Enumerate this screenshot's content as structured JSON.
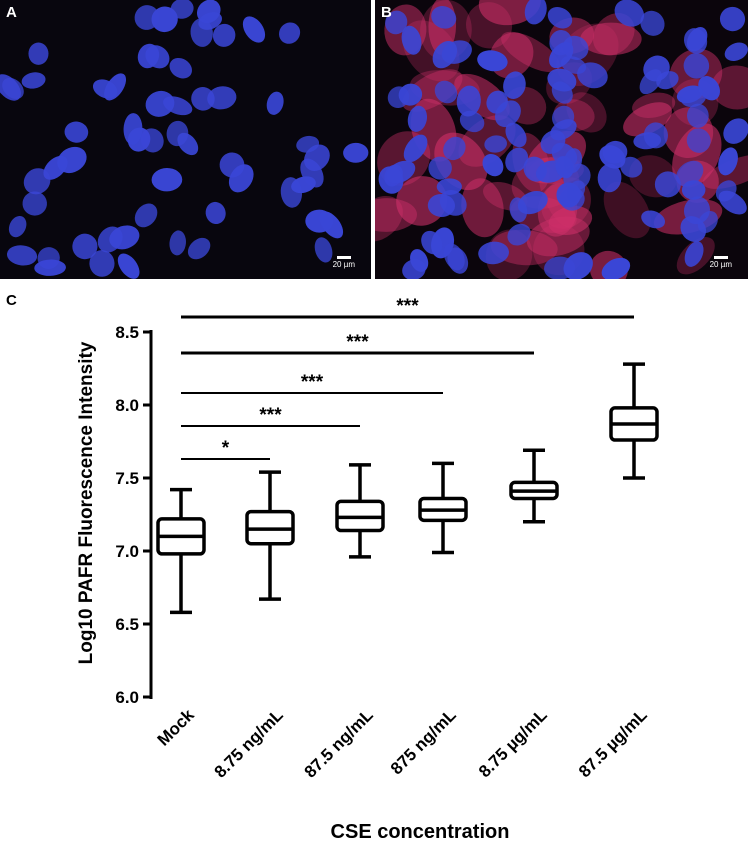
{
  "panels": {
    "a": {
      "letter": "A",
      "scale_label": "20 µm"
    },
    "b": {
      "letter": "B",
      "scale_label": "20 µm"
    },
    "c": {
      "letter": "C"
    }
  },
  "colors": {
    "nucleus": "#3a46d6",
    "pafr_stain": "#d0306a",
    "background_a": "#08060e",
    "background_b": "#0b050c",
    "ink": "#000000"
  },
  "chart_data": {
    "type": "box",
    "xlabel": "CSE concentration",
    "ylabel": "Log10 PAFR Fluorescence Intensity",
    "ylim": [
      6.0,
      8.5
    ],
    "yticks": [
      "6.0",
      "6.5",
      "7.0",
      "7.5",
      "8.0",
      "8.5"
    ],
    "categories": [
      "Mock",
      "8.75 ng/mL",
      "87.5 ng/mL",
      "875 ng/mL",
      "8.75 µg/mL",
      "87.5 µg/mL"
    ],
    "boxes": [
      {
        "min": 6.58,
        "q1": 6.98,
        "median": 7.1,
        "q3": 7.22,
        "max": 7.42
      },
      {
        "min": 6.67,
        "q1": 7.05,
        "median": 7.15,
        "q3": 7.27,
        "max": 7.54
      },
      {
        "min": 6.96,
        "q1": 7.14,
        "median": 7.23,
        "q3": 7.34,
        "max": 7.59
      },
      {
        "min": 6.99,
        "q1": 7.21,
        "median": 7.28,
        "q3": 7.36,
        "max": 7.6
      },
      {
        "min": 7.2,
        "q1": 7.36,
        "median": 7.41,
        "q3": 7.47,
        "max": 7.69
      },
      {
        "min": 7.5,
        "q1": 7.76,
        "median": 7.87,
        "q3": 7.98,
        "max": 8.28
      }
    ],
    "significance": [
      {
        "from": "Mock",
        "to": "8.75 ng/mL",
        "label": "*"
      },
      {
        "from": "Mock",
        "to": "87.5 ng/mL",
        "label": "***"
      },
      {
        "from": "Mock",
        "to": "875 ng/mL",
        "label": "***"
      },
      {
        "from": "Mock",
        "to": "8.75 µg/mL",
        "label": "***"
      },
      {
        "from": "Mock",
        "to": "87.5 µg/mL",
        "label": "***"
      }
    ]
  }
}
